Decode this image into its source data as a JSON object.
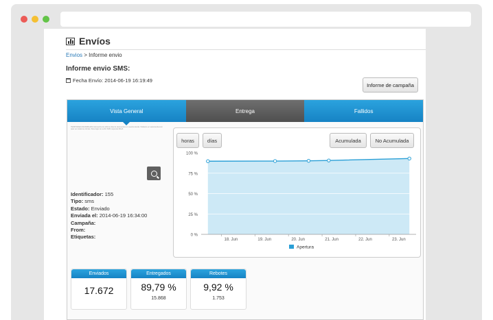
{
  "page": {
    "title": "Envíos",
    "breadcrumb": {
      "link": "Envios",
      "separator": ">",
      "current": "Informe envio"
    },
    "report_title": "Informe envio SMS:",
    "date_label": "Fecha Envío: 2014-06-19 16:19:49",
    "informe_button": "Informe de campaña"
  },
  "tabs": [
    {
      "label": "Vista General",
      "active": true
    },
    {
      "label": "Entrega",
      "active": false
    },
    {
      "label": "Fallidos",
      "active": false
    }
  ],
  "preview_text": "TEMPORADA DE REBAJAS! Aprovecha los ultimos dias de descuentos en nuestra tienda. Visitanos en www.tienda.com para ver todas las ofertas. Para dejar de recibir SMS responde BAJA",
  "info": [
    {
      "label": "Identificador:",
      "value": "155"
    },
    {
      "label": "Tipo:",
      "value": "sms"
    },
    {
      "label": "Estado:",
      "value": "Enviado"
    },
    {
      "label": "Enviada el:",
      "value": "2014-06-19 16:34:00"
    },
    {
      "label": "Campaña:",
      "value": ""
    },
    {
      "label": "From:",
      "value": ""
    },
    {
      "label": "Etiquetas:",
      "value": ""
    }
  ],
  "chart_buttons": {
    "horas": "horas",
    "dias": "días",
    "acumulada": "Acumulada",
    "no_acumulada": "No Acumulada"
  },
  "chart_data": {
    "type": "area",
    "x": [
      "18. Jun",
      "19. Jun",
      "20. Jun",
      "21. Jun",
      "22. Jun",
      "23. Jun"
    ],
    "y_ticks": [
      "0 %",
      "25 %",
      "50 %",
      "75 %",
      "100 %"
    ],
    "ylim": [
      0,
      100
    ],
    "series": [
      {
        "name": "Apertura",
        "color": "#2a9fd6",
        "fill": "#cde9f6",
        "points": [
          [
            17.6,
            89.7
          ],
          [
            19.6,
            89.9
          ],
          [
            20.6,
            90.2
          ],
          [
            21.2,
            90.6
          ],
          [
            23.6,
            93.0
          ]
        ]
      }
    ],
    "grid": true,
    "legend": "bottom"
  },
  "stats": [
    {
      "header": "Enviados",
      "value": "17.672",
      "sub": ""
    },
    {
      "header": "Entregados",
      "value": "89,79 %",
      "sub": "15.868"
    },
    {
      "header": "Rebotes",
      "value": "9,92 %",
      "sub": "1.753"
    }
  ]
}
